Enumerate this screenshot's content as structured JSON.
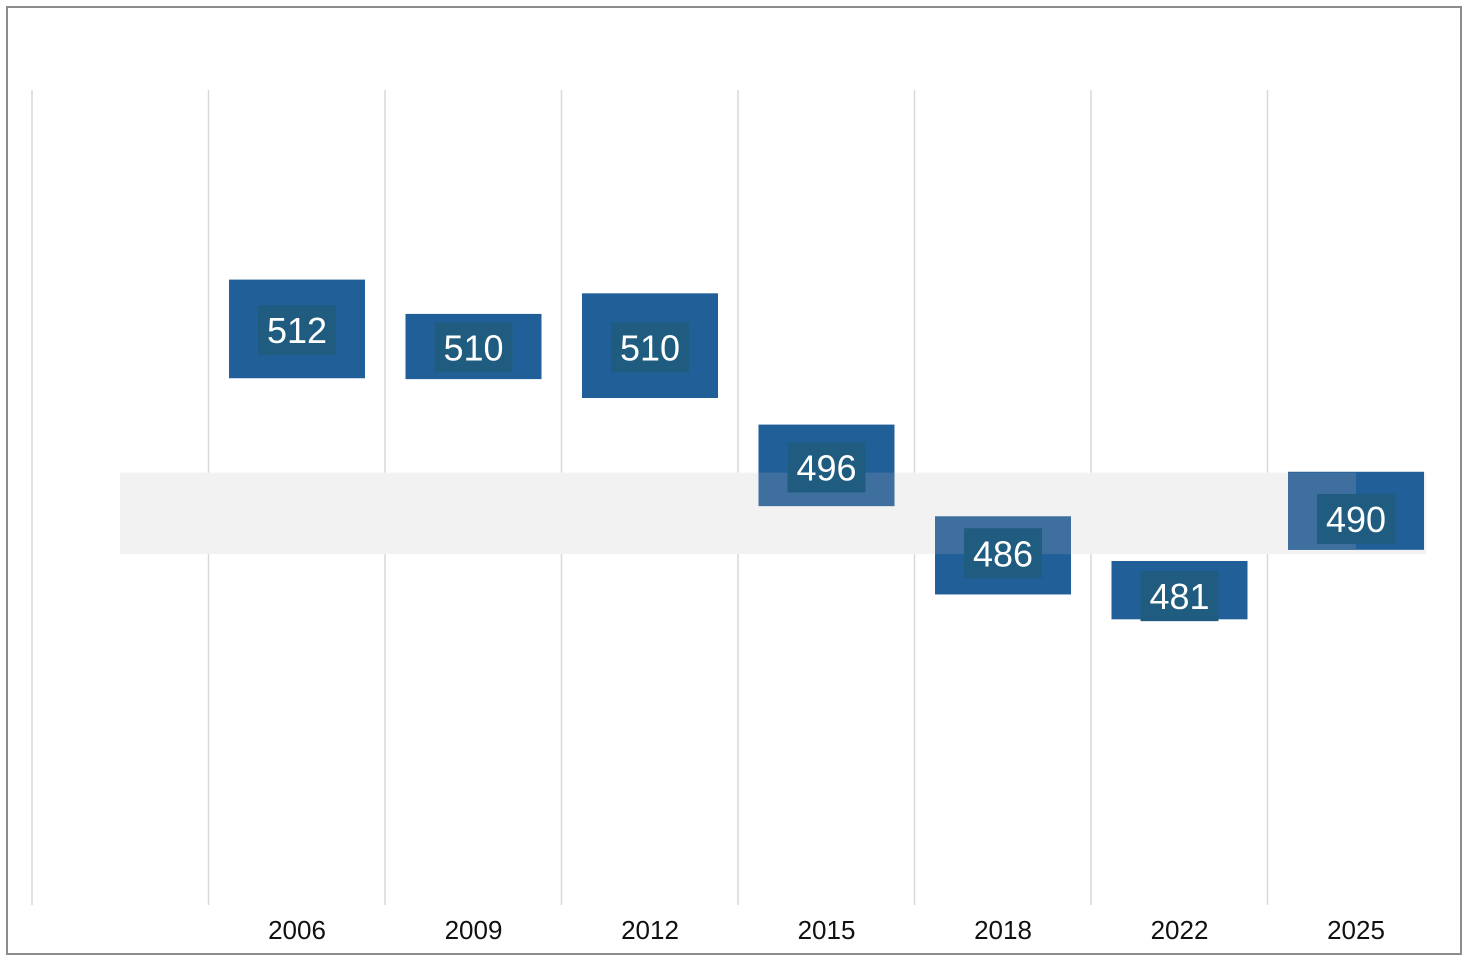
{
  "chart_data": {
    "type": "bar",
    "subtype": "floating-range",
    "title": "",
    "xlabel": "",
    "ylabel": "",
    "ylim": [
      445,
      540
    ],
    "grid": "vertical",
    "categories": [
      "2006",
      "2009",
      "2012",
      "2015",
      "2018",
      "2022",
      "2025"
    ],
    "points": [
      {
        "year": "2006",
        "value": 512,
        "low": 506.4,
        "high": 517.9
      },
      {
        "year": "2009",
        "value": 510,
        "low": 506.3,
        "high": 513.9
      },
      {
        "year": "2012",
        "value": 510,
        "low": 504.1,
        "high": 516.3
      },
      {
        "year": "2015",
        "value": 496,
        "low": 491.5,
        "high": 501.0
      },
      {
        "year": "2018",
        "value": 486,
        "low": 481.2,
        "high": 490.3
      },
      {
        "year": "2022",
        "value": 481,
        "low": 478.3,
        "high": 485.1
      },
      {
        "year": "2025",
        "value": 490,
        "low": 486.4,
        "high": 495.5
      }
    ],
    "reference_band": {
      "low": 485.9,
      "high": 495.4
    },
    "colors": {
      "bar": "#215f99",
      "bar_overlap": "#3f6f9e",
      "label_box": "#1f5c80",
      "band": "#f2f2f2",
      "grid": "#d9d9d9",
      "border": "#8c8c8c"
    }
  }
}
